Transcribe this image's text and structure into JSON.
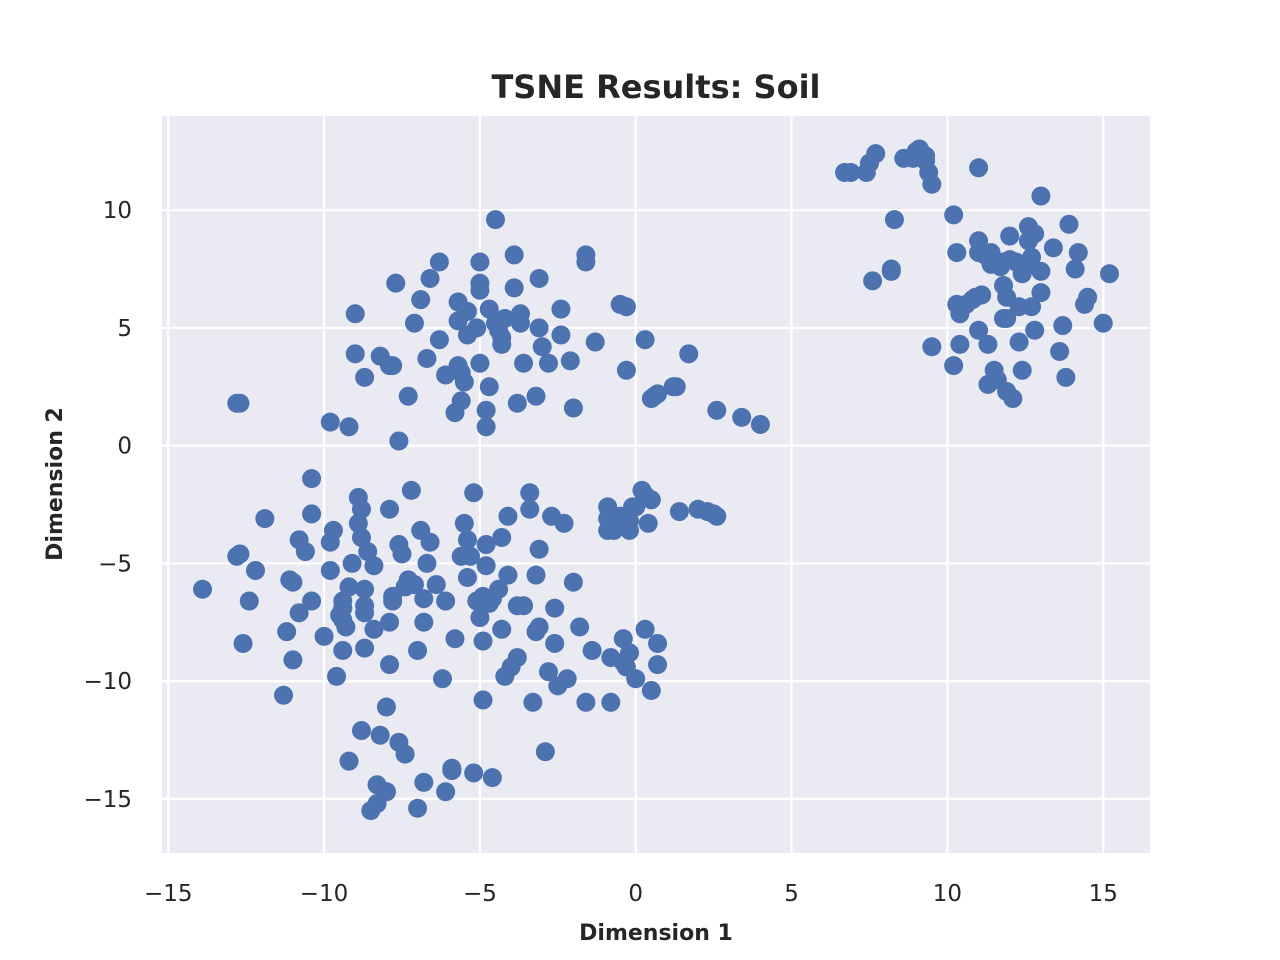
{
  "chart_data": {
    "type": "scatter",
    "title": "TSNE Results: Soil",
    "xlabel": "Dimension 1",
    "ylabel": "Dimension 2",
    "xlim": [
      -15.2,
      16.5
    ],
    "ylim": [
      -17.3,
      14.0
    ],
    "xticks": [
      -15,
      -10,
      -5,
      0,
      5,
      10,
      15
    ],
    "yticks": [
      -15,
      -10,
      -5,
      0,
      5,
      10
    ],
    "xtick_labels": [
      "−15",
      "−10",
      "−5",
      "0",
      "5",
      "10",
      "15"
    ],
    "ytick_labels": [
      "−15",
      "−10",
      "−5",
      "0",
      "5",
      "10"
    ],
    "grid": true,
    "background_color": "#eaeaf2",
    "grid_color": "#ffffff",
    "point_color": "#4c72b0",
    "series": [
      {
        "points": [
          [
            -13.9,
            -6.1
          ],
          [
            -12.8,
            1.8
          ],
          [
            -12.7,
            1.8
          ],
          [
            -12.8,
            -4.7
          ],
          [
            -12.7,
            -4.6
          ],
          [
            -12.6,
            -8.4
          ],
          [
            -12.4,
            -6.6
          ],
          [
            -12.2,
            -5.3
          ],
          [
            -11.9,
            -3.1
          ],
          [
            -11.2,
            -7.9
          ],
          [
            -11.3,
            -10.6
          ],
          [
            -11.0,
            -9.1
          ],
          [
            -11.1,
            -5.7
          ],
          [
            -11.0,
            -5.8
          ],
          [
            -10.8,
            -4.0
          ],
          [
            -10.8,
            -7.1
          ],
          [
            -10.6,
            -4.5
          ],
          [
            -10.4,
            -2.9
          ],
          [
            -10.4,
            -1.4
          ],
          [
            -10.4,
            -6.6
          ],
          [
            -10.0,
            -8.1
          ],
          [
            -9.8,
            -4.1
          ],
          [
            -9.8,
            -5.3
          ],
          [
            -9.8,
            1.0
          ],
          [
            -9.7,
            -3.6
          ],
          [
            -9.6,
            -9.8
          ],
          [
            -9.5,
            -7.2
          ],
          [
            -9.4,
            -6.9
          ],
          [
            -9.4,
            -6.6
          ],
          [
            -9.4,
            -7.4
          ],
          [
            -9.4,
            -8.7
          ],
          [
            -9.3,
            -7.7
          ],
          [
            -9.2,
            0.8
          ],
          [
            -9.2,
            -13.4
          ],
          [
            -9.2,
            -6.0
          ],
          [
            -9.1,
            -5.0
          ],
          [
            -9.0,
            5.6
          ],
          [
            -9.0,
            3.9
          ],
          [
            -8.9,
            -2.2
          ],
          [
            -8.9,
            -3.3
          ],
          [
            -8.8,
            -2.7
          ],
          [
            -8.8,
            -3.9
          ],
          [
            -8.8,
            -12.1
          ],
          [
            -8.7,
            -6.8
          ],
          [
            -8.7,
            -7.1
          ],
          [
            -8.7,
            2.9
          ],
          [
            -8.7,
            -6.1
          ],
          [
            -8.7,
            -8.6
          ],
          [
            -8.6,
            -4.5
          ],
          [
            -8.5,
            -15.5
          ],
          [
            -8.4,
            -5.1
          ],
          [
            -8.4,
            -7.8
          ],
          [
            -8.3,
            -14.4
          ],
          [
            -8.3,
            -15.2
          ],
          [
            -8.2,
            3.8
          ],
          [
            -8.2,
            -12.3
          ],
          [
            -8.0,
            -11.1
          ],
          [
            -8.0,
            -14.7
          ],
          [
            -8.0,
            -14.7
          ],
          [
            -7.9,
            3.4
          ],
          [
            -7.9,
            -2.7
          ],
          [
            -7.9,
            -7.5
          ],
          [
            -7.9,
            -9.3
          ],
          [
            -7.8,
            3.4
          ],
          [
            -7.8,
            -6.4
          ],
          [
            -7.8,
            -6.6
          ],
          [
            -7.7,
            6.9
          ],
          [
            -7.6,
            -4.2
          ],
          [
            -7.6,
            -12.6
          ],
          [
            -7.6,
            0.2
          ],
          [
            -7.5,
            -4.6
          ],
          [
            -7.4,
            -6.0
          ],
          [
            -7.4,
            -13.1
          ],
          [
            -7.3,
            2.1
          ],
          [
            -7.3,
            -5.7
          ],
          [
            -7.2,
            -1.9
          ],
          [
            -7.1,
            5.2
          ],
          [
            -7.1,
            -5.9
          ],
          [
            -7.0,
            -8.7
          ],
          [
            -7.0,
            -15.4
          ],
          [
            -6.9,
            6.2
          ],
          [
            -6.9,
            -3.6
          ],
          [
            -6.8,
            -6.5
          ],
          [
            -6.8,
            -14.3
          ],
          [
            -6.8,
            -7.5
          ],
          [
            -6.7,
            -5.0
          ],
          [
            -6.7,
            3.7
          ],
          [
            -6.6,
            7.1
          ],
          [
            -6.6,
            -4.1
          ],
          [
            -6.4,
            -5.9
          ],
          [
            -6.3,
            4.5
          ],
          [
            -6.3,
            7.8
          ],
          [
            -6.2,
            -9.9
          ],
          [
            -6.1,
            3.0
          ],
          [
            -6.1,
            -6.6
          ],
          [
            -6.1,
            -14.7
          ],
          [
            -5.9,
            -13.7
          ],
          [
            -5.9,
            -13.8
          ],
          [
            -5.8,
            1.4
          ],
          [
            -5.8,
            -8.2
          ],
          [
            -5.7,
            6.1
          ],
          [
            -5.7,
            5.3
          ],
          [
            -5.7,
            3.4
          ],
          [
            -5.6,
            -4.7
          ],
          [
            -5.6,
            3.1
          ],
          [
            -5.6,
            1.9
          ],
          [
            -5.5,
            -3.3
          ],
          [
            -5.5,
            2.7
          ],
          [
            -5.4,
            5.7
          ],
          [
            -5.4,
            -5.6
          ],
          [
            -5.4,
            4.7
          ],
          [
            -5.4,
            -4.0
          ],
          [
            -5.3,
            -4.7
          ],
          [
            -5.2,
            -2.0
          ],
          [
            -5.2,
            -13.9
          ],
          [
            -5.1,
            5.0
          ],
          [
            -5.1,
            -6.6
          ],
          [
            -5.0,
            -7.3
          ],
          [
            -5.0,
            7.8
          ],
          [
            -5.0,
            6.9
          ],
          [
            -5.0,
            6.6
          ],
          [
            -5.0,
            3.5
          ],
          [
            -4.9,
            -6.4
          ],
          [
            -4.9,
            -8.3
          ],
          [
            -4.9,
            -10.8
          ],
          [
            -4.8,
            1.5
          ],
          [
            -4.8,
            0.8
          ],
          [
            -4.8,
            -4.2
          ],
          [
            -4.8,
            -5.1
          ],
          [
            -4.7,
            -6.7
          ],
          [
            -4.7,
            5.8
          ],
          [
            -4.7,
            2.5
          ],
          [
            -4.6,
            -14.1
          ],
          [
            -4.6,
            -6.5
          ],
          [
            -4.5,
            9.6
          ],
          [
            -4.5,
            5.2
          ],
          [
            -4.4,
            -6.1
          ],
          [
            -4.4,
            4.9
          ],
          [
            -4.3,
            4.3
          ],
          [
            -4.3,
            4.6
          ],
          [
            -4.3,
            -7.8
          ],
          [
            -4.3,
            -3.9
          ],
          [
            -4.2,
            -9.8
          ],
          [
            -4.2,
            5.4
          ],
          [
            -4.1,
            -3.0
          ],
          [
            -4.1,
            -5.5
          ],
          [
            -4.0,
            -9.4
          ],
          [
            -3.9,
            8.1
          ],
          [
            -3.9,
            6.7
          ],
          [
            -3.8,
            1.8
          ],
          [
            -3.8,
            -6.8
          ],
          [
            -3.8,
            -9.0
          ],
          [
            -3.7,
            5.6
          ],
          [
            -3.7,
            5.2
          ],
          [
            -3.6,
            -6.8
          ],
          [
            -3.6,
            3.5
          ],
          [
            -3.4,
            -2.0
          ],
          [
            -3.4,
            -2.7
          ],
          [
            -3.3,
            -10.9
          ],
          [
            -3.2,
            -5.5
          ],
          [
            -3.2,
            -7.9
          ],
          [
            -3.2,
            2.1
          ],
          [
            -3.1,
            7.1
          ],
          [
            -3.1,
            -7.7
          ],
          [
            -3.1,
            -4.4
          ],
          [
            -3.1,
            5.0
          ],
          [
            -3.0,
            4.2
          ],
          [
            -2.9,
            -13.0
          ],
          [
            -2.8,
            3.5
          ],
          [
            -2.8,
            -9.6
          ],
          [
            -2.7,
            -3.0
          ],
          [
            -2.6,
            -6.9
          ],
          [
            -2.6,
            -8.4
          ],
          [
            -2.5,
            -10.2
          ],
          [
            -2.4,
            5.8
          ],
          [
            -2.4,
            4.7
          ],
          [
            -2.3,
            -3.3
          ],
          [
            -2.2,
            -9.9
          ],
          [
            -2.1,
            3.6
          ],
          [
            -2.0,
            -5.8
          ],
          [
            -2.0,
            1.6
          ],
          [
            -1.8,
            -7.7
          ],
          [
            -1.6,
            8.1
          ],
          [
            -1.6,
            7.8
          ],
          [
            -1.6,
            -10.9
          ],
          [
            -1.4,
            -8.7
          ],
          [
            -1.3,
            4.4
          ],
          [
            -0.9,
            -2.6
          ],
          [
            -0.9,
            -3.6
          ],
          [
            -0.9,
            -3.1
          ],
          [
            -0.8,
            -3.3
          ],
          [
            -0.8,
            -10.9
          ],
          [
            -0.8,
            -9.0
          ],
          [
            -0.7,
            -3.6
          ],
          [
            -0.6,
            -3.2
          ],
          [
            -0.6,
            -3.4
          ],
          [
            -0.5,
            -3.0
          ],
          [
            -0.5,
            6.0
          ],
          [
            -0.4,
            -8.2
          ],
          [
            -0.4,
            -9.2
          ],
          [
            -0.3,
            -9.4
          ],
          [
            -0.3,
            3.2
          ],
          [
            -0.3,
            5.9
          ],
          [
            -0.2,
            -3.2
          ],
          [
            -0.2,
            -8.8
          ],
          [
            -0.2,
            -3.6
          ],
          [
            -0.1,
            -2.6
          ],
          [
            0.0,
            -2.6
          ],
          [
            0.0,
            -9.9
          ],
          [
            0.2,
            -1.9
          ],
          [
            0.3,
            -2.1
          ],
          [
            0.3,
            4.5
          ],
          [
            0.3,
            -7.8
          ],
          [
            0.4,
            -3.3
          ],
          [
            0.5,
            -2.3
          ],
          [
            0.5,
            -10.4
          ],
          [
            0.5,
            2.0
          ],
          [
            0.6,
            2.1
          ],
          [
            0.7,
            2.2
          ],
          [
            0.7,
            -8.4
          ],
          [
            0.7,
            -9.3
          ],
          [
            1.2,
            2.5
          ],
          [
            1.3,
            2.5
          ],
          [
            1.4,
            -2.8
          ],
          [
            1.7,
            3.9
          ],
          [
            2.0,
            -2.7
          ],
          [
            2.3,
            -2.8
          ],
          [
            2.5,
            -2.9
          ],
          [
            2.6,
            1.5
          ],
          [
            2.6,
            -3.0
          ],
          [
            3.4,
            1.2
          ],
          [
            4.0,
            0.9
          ],
          [
            6.7,
            11.6
          ],
          [
            6.9,
            11.6
          ],
          [
            7.4,
            11.6
          ],
          [
            7.5,
            12.0
          ],
          [
            7.6,
            7.0
          ],
          [
            7.7,
            12.4
          ],
          [
            8.2,
            7.4
          ],
          [
            8.2,
            7.5
          ],
          [
            8.3,
            9.6
          ],
          [
            8.6,
            12.2
          ],
          [
            8.9,
            12.2
          ],
          [
            9.0,
            12.3
          ],
          [
            9.0,
            12.5
          ],
          [
            9.1,
            12.6
          ],
          [
            9.2,
            12.4
          ],
          [
            9.3,
            12.3
          ],
          [
            9.3,
            12.1
          ],
          [
            9.4,
            11.6
          ],
          [
            9.5,
            11.1
          ],
          [
            9.5,
            4.2
          ],
          [
            10.2,
            9.8
          ],
          [
            10.2,
            3.4
          ],
          [
            10.3,
            6.0
          ],
          [
            10.3,
            8.2
          ],
          [
            10.4,
            5.6
          ],
          [
            10.4,
            4.3
          ],
          [
            10.6,
            6.0
          ],
          [
            10.8,
            6.2
          ],
          [
            10.9,
            6.3
          ],
          [
            11.0,
            11.8
          ],
          [
            11.0,
            8.7
          ],
          [
            11.0,
            8.2
          ],
          [
            11.0,
            4.9
          ],
          [
            11.1,
            6.4
          ],
          [
            11.2,
            8.1
          ],
          [
            11.3,
            4.3
          ],
          [
            11.3,
            2.6
          ],
          [
            11.4,
            8.2
          ],
          [
            11.4,
            7.7
          ],
          [
            11.5,
            3.2
          ],
          [
            11.6,
            2.8
          ],
          [
            11.7,
            7.6
          ],
          [
            11.8,
            6.8
          ],
          [
            11.8,
            5.4
          ],
          [
            11.8,
            7.8
          ],
          [
            11.9,
            5.4
          ],
          [
            11.9,
            6.3
          ],
          [
            11.9,
            2.3
          ],
          [
            12.0,
            7.9
          ],
          [
            12.0,
            8.9
          ],
          [
            12.1,
            2.0
          ],
          [
            12.2,
            7.8
          ],
          [
            12.3,
            4.4
          ],
          [
            12.3,
            5.9
          ],
          [
            12.4,
            7.3
          ],
          [
            12.4,
            3.2
          ],
          [
            12.5,
            7.6
          ],
          [
            12.6,
            8.7
          ],
          [
            12.6,
            9.3
          ],
          [
            12.7,
            5.9
          ],
          [
            12.7,
            8.0
          ],
          [
            12.8,
            4.9
          ],
          [
            12.8,
            9.0
          ],
          [
            13.0,
            7.4
          ],
          [
            13.0,
            10.6
          ],
          [
            13.0,
            6.5
          ],
          [
            13.4,
            8.4
          ],
          [
            13.6,
            4.0
          ],
          [
            13.7,
            5.1
          ],
          [
            13.8,
            2.9
          ],
          [
            13.9,
            9.4
          ],
          [
            14.1,
            7.5
          ],
          [
            14.2,
            8.2
          ],
          [
            14.4,
            6.0
          ],
          [
            14.5,
            6.3
          ],
          [
            15.0,
            5.2
          ],
          [
            15.2,
            7.3
          ]
        ]
      }
    ]
  }
}
